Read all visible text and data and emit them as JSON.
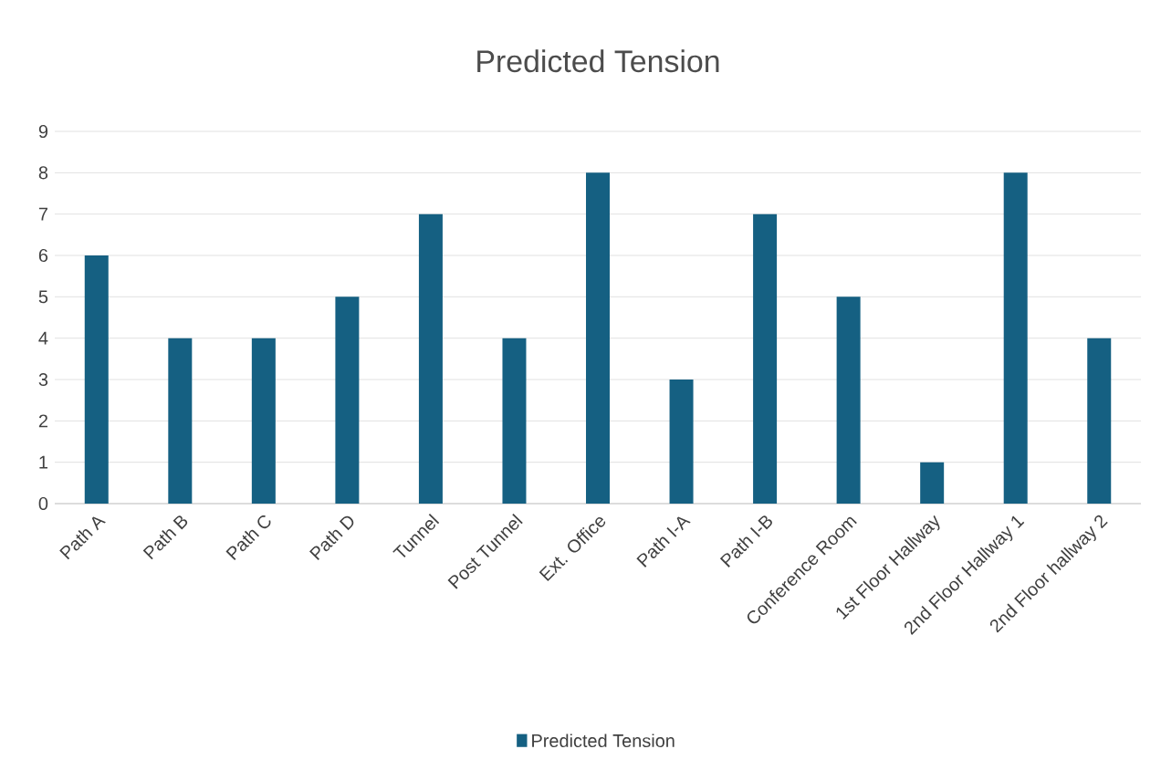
{
  "chart_data": {
    "type": "bar",
    "title": "Predicted Tension",
    "categories": [
      "Path A",
      "Path B",
      "Path C",
      "Path D",
      "Tunnel",
      "Post Tunnel",
      "Ext. Office",
      "Path I-A",
      "Path I-B",
      "Conference Room",
      "1st Floor Hallway",
      "2nd Floor Hallway 1",
      "2nd Floor hallway 2"
    ],
    "series": [
      {
        "name": "Predicted Tension",
        "color": "#156082",
        "values": [
          6,
          4,
          4,
          5,
          7,
          4,
          8,
          3,
          7,
          5,
          1,
          8,
          4
        ]
      }
    ],
    "ylim": [
      0,
      9
    ],
    "yticks": [
      0,
      1,
      2,
      3,
      4,
      5,
      6,
      7,
      8,
      9
    ],
    "grid": "y",
    "legend": "bottom"
  }
}
